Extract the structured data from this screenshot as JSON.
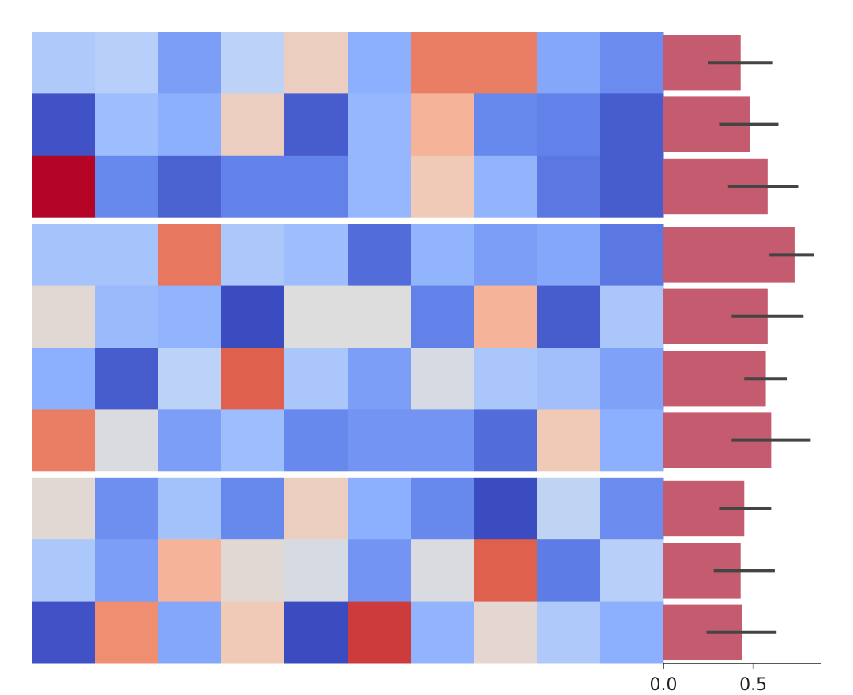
{
  "chart_data": [
    {
      "type": "heatmap",
      "colormap": "coolwarm",
      "row_groups": [
        3,
        4,
        3
      ],
      "group_gap": true,
      "rows": [
        [
          -0.3,
          -0.25,
          -0.6,
          -0.22,
          0.15,
          -0.5,
          0.62,
          0.62,
          -0.55,
          -0.7
        ],
        [
          -0.97,
          -0.4,
          -0.5,
          0.15,
          -0.92,
          -0.45,
          0.35,
          -0.72,
          -0.75,
          -0.92
        ],
        [
          1.0,
          -0.72,
          -0.9,
          -0.75,
          -0.75,
          -0.45,
          0.2,
          -0.47,
          -0.8,
          -0.92
        ],
        [
          -0.35,
          -0.35,
          0.65,
          -0.32,
          -0.4,
          -0.85,
          -0.47,
          -0.6,
          -0.55,
          -0.8
        ],
        [
          0.05,
          -0.42,
          -0.47,
          -1.0,
          0.0,
          0.0,
          -0.75,
          0.35,
          -0.92,
          -0.33
        ],
        [
          -0.5,
          -0.92,
          -0.22,
          0.75,
          -0.33,
          -0.6,
          -0.05,
          -0.33,
          -0.38,
          -0.58
        ],
        [
          0.62,
          -0.03,
          -0.6,
          -0.4,
          -0.72,
          -0.65,
          -0.65,
          -0.85,
          0.2,
          -0.5
        ],
        [
          0.05,
          -0.68,
          -0.37,
          -0.72,
          0.15,
          -0.5,
          -0.72,
          -1.0,
          -0.2,
          -0.7
        ],
        [
          -0.32,
          -0.6,
          0.35,
          0.05,
          -0.05,
          -0.65,
          -0.03,
          0.75,
          -0.78,
          -0.25
        ],
        [
          -0.97,
          0.55,
          -0.55,
          0.2,
          -1.0,
          0.85,
          -0.47,
          0.07,
          -0.3,
          -0.5
        ]
      ],
      "xlabel": "",
      "ylabel": "",
      "grid": false
    },
    {
      "type": "bar",
      "orientation": "horizontal",
      "values": [
        0.43,
        0.48,
        0.58,
        0.73,
        0.58,
        0.57,
        0.6,
        0.45,
        0.43,
        0.44
      ],
      "error_low": [
        0.25,
        0.31,
        0.36,
        0.59,
        0.38,
        0.45,
        0.38,
        0.31,
        0.28,
        0.24
      ],
      "error_high": [
        0.61,
        0.64,
        0.75,
        0.84,
        0.78,
        0.69,
        0.82,
        0.6,
        0.62,
        0.63
      ],
      "bar_color": "#c45b6e",
      "error_color": "#444444",
      "xlim": [
        0.0,
        0.88
      ],
      "xticks": [
        0.0,
        0.5
      ],
      "xtick_labels": [
        "0.0",
        "0.5"
      ],
      "xlabel": "",
      "ylabel": "",
      "grid": false
    }
  ]
}
